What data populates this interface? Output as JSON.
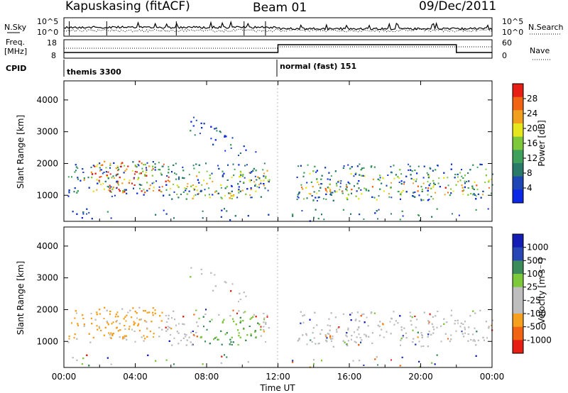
{
  "header": {
    "station": "Kapuskasing (fitACF)",
    "beam": "Beam 01",
    "date": "09/Dec/2011"
  },
  "top_panel": {
    "left_label": "N.Sky",
    "right_label": "N.Search",
    "left_ticks": [
      "10^5",
      "10^0"
    ],
    "right_ticks": [
      "10^5",
      "10^0"
    ]
  },
  "freq_panel": {
    "left_label_1": "Freq.",
    "left_label_2": "[MHz]",
    "left_ticks": [
      "18",
      "8"
    ],
    "right_ticks": [
      "60",
      "0"
    ],
    "right_label": "Nave"
  },
  "cpid": {
    "label": "CPID",
    "segments": [
      {
        "text": "themis 3300",
        "start_hour": 0.0
      },
      {
        "text": "normal (fast) 151",
        "start_hour": 12.0
      }
    ]
  },
  "x_axis": {
    "label": "Time UT",
    "tick_labels": [
      "00:00",
      "04:00",
      "08:00",
      "12:00",
      "16:00",
      "20:00",
      "00:00"
    ]
  },
  "colors": {
    "power_scale": [
      "#0a28e6",
      "#1e46b4",
      "#2a7a6a",
      "#3ea05a",
      "#7ec83c",
      "#e6e61e",
      "#f0a01e",
      "#f06414",
      "#e61e14"
    ],
    "velocity_scale": [
      "#e61e14",
      "#f06414",
      "#f5a01e",
      "#bebebe",
      "#bebebe",
      "#7ec83c",
      "#3c8c5a",
      "#2846b4",
      "#141eb4"
    ]
  },
  "chart_data": [
    {
      "type": "heatmap",
      "ylabel": "Slant Range [km]",
      "xlabel": "",
      "ylim": [
        180,
        4600
      ],
      "xlim": [
        0,
        24
      ],
      "yticks": [
        "1000",
        "2000",
        "3000",
        "4000"
      ],
      "colorbar": {
        "label": "Power [dB]",
        "ticks": [
          "4",
          "8",
          "12",
          "16",
          "20",
          "24",
          "28"
        ],
        "range": [
          0,
          30
        ]
      }
    },
    {
      "type": "heatmap",
      "ylabel": "Slant Range [km]",
      "xlabel": "Time UT",
      "ylim": [
        180,
        4600
      ],
      "xlim": [
        0,
        24
      ],
      "yticks": [
        "1000",
        "2000",
        "3000",
        "4000"
      ],
      "colorbar": {
        "label": "Velocity [m s⁻¹]",
        "ticks": [
          "1000",
          "500",
          "100",
          "25",
          "-25",
          "-100",
          "-500",
          "-1000"
        ],
        "range": [
          -1000,
          1000
        ]
      }
    }
  ]
}
